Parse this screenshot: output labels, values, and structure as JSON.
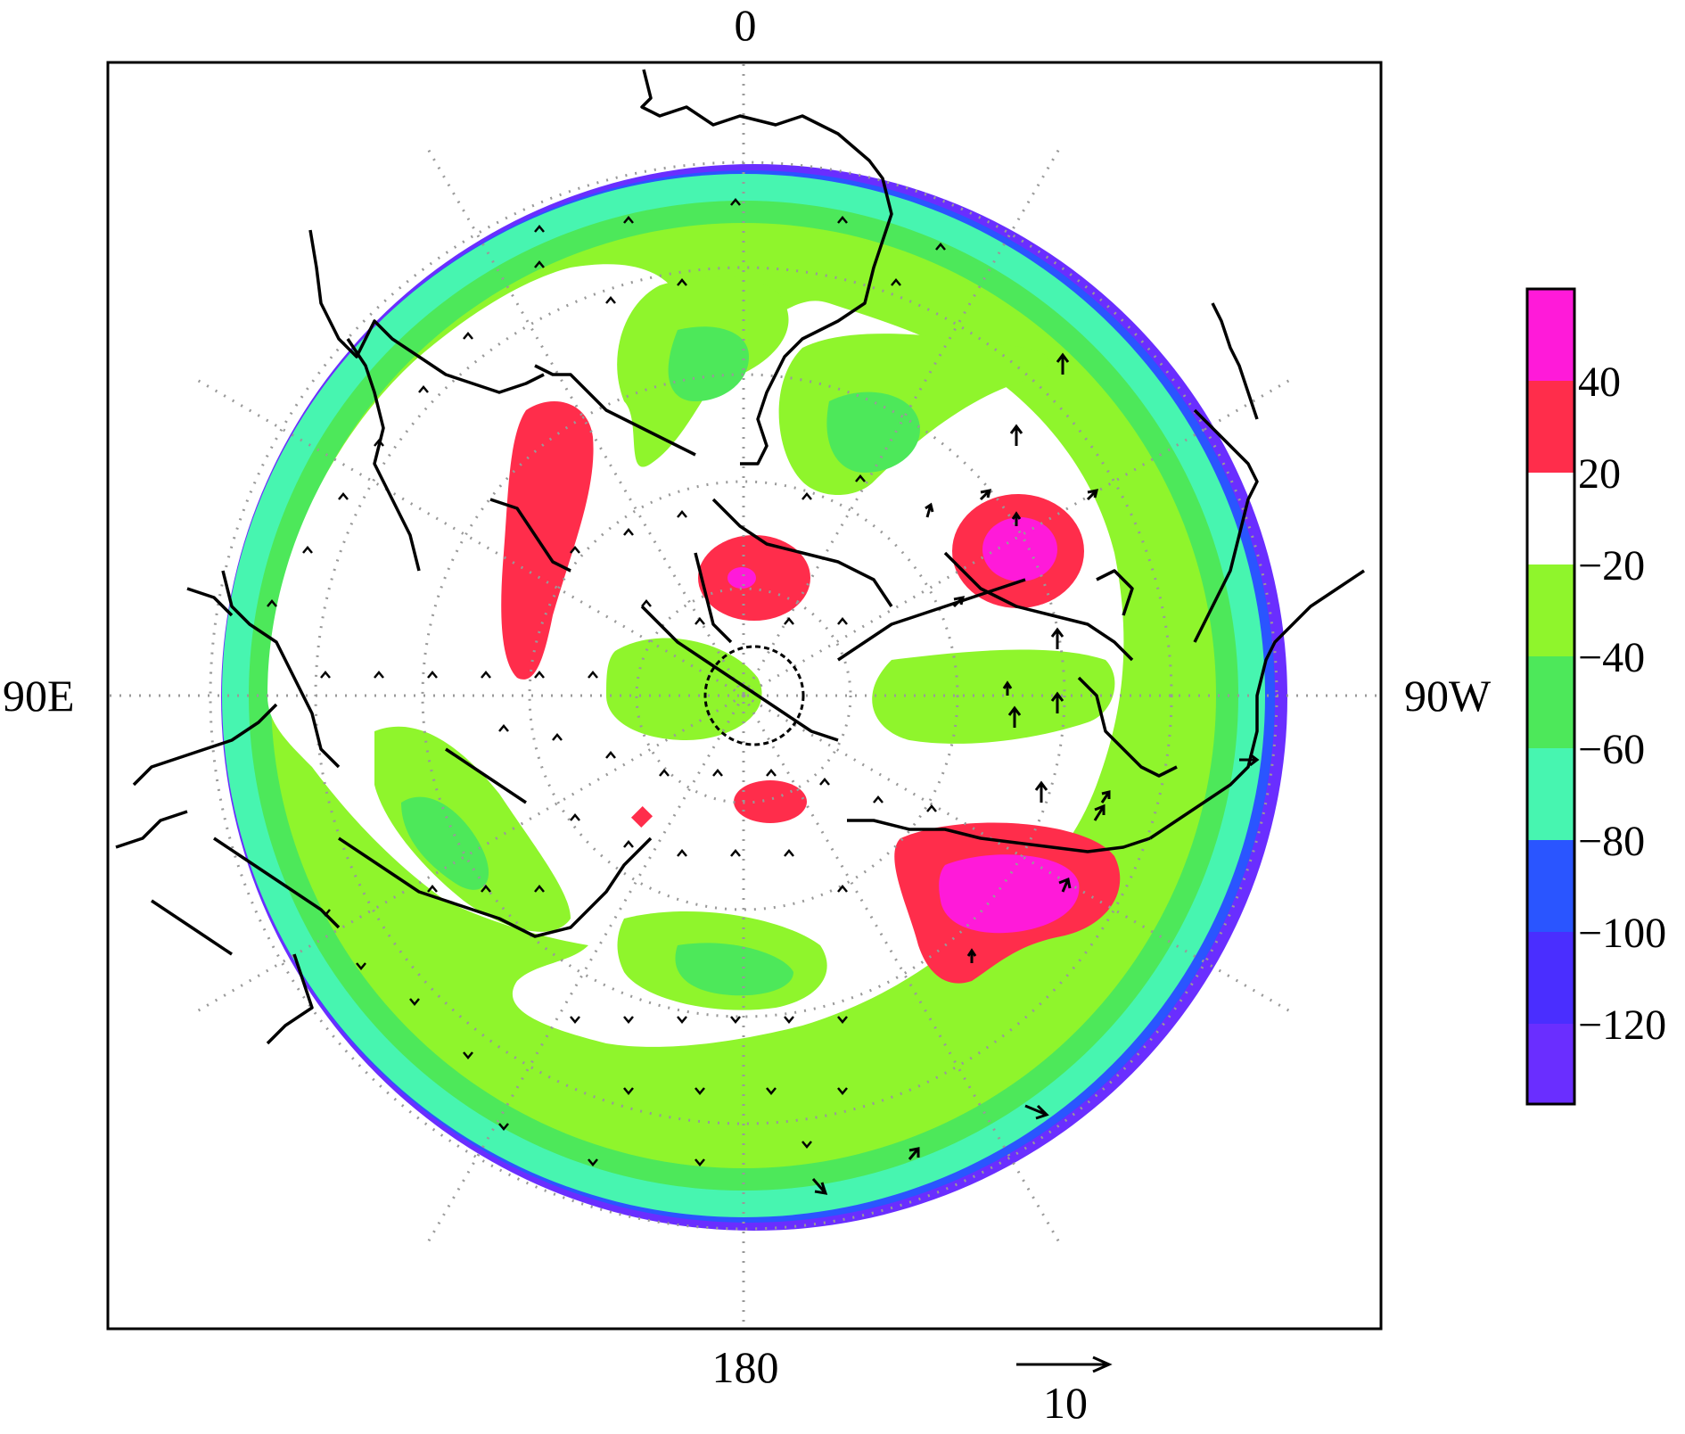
{
  "map": {
    "projection": "north-polar-stereographic",
    "longitude_labels": {
      "top": "0",
      "bottom": "180",
      "left": "90E",
      "right": "90W"
    },
    "graticule": "dotted grey",
    "coastlines": "black",
    "field_colors": {
      "gt_40": "#ff1ad9",
      "20_to_40": "#ff2d4b",
      "m20_to_20": "#ffffff",
      "m40_to_m20": "#8ff52c",
      "m60_to_m40": "#4de85a",
      "m80_to_m60": "#47f5b0",
      "m100_to_m80": "#2a55ff",
      "m120_to_m100": "#4a2eff",
      "lt_m120": "#6a2eff"
    }
  },
  "colorbar": {
    "tick_labels": [
      "40",
      "20",
      "−20",
      "−40",
      "−60",
      "−80",
      "−100",
      "−120"
    ],
    "colors": [
      "#ff1ad9",
      "#ff2d4b",
      "#ffffff",
      "#8ff52c",
      "#4de85a",
      "#47f5b0",
      "#2a55ff",
      "#4a2eff",
      "#6a2eff"
    ]
  },
  "reference_vector": {
    "label": "10"
  }
}
